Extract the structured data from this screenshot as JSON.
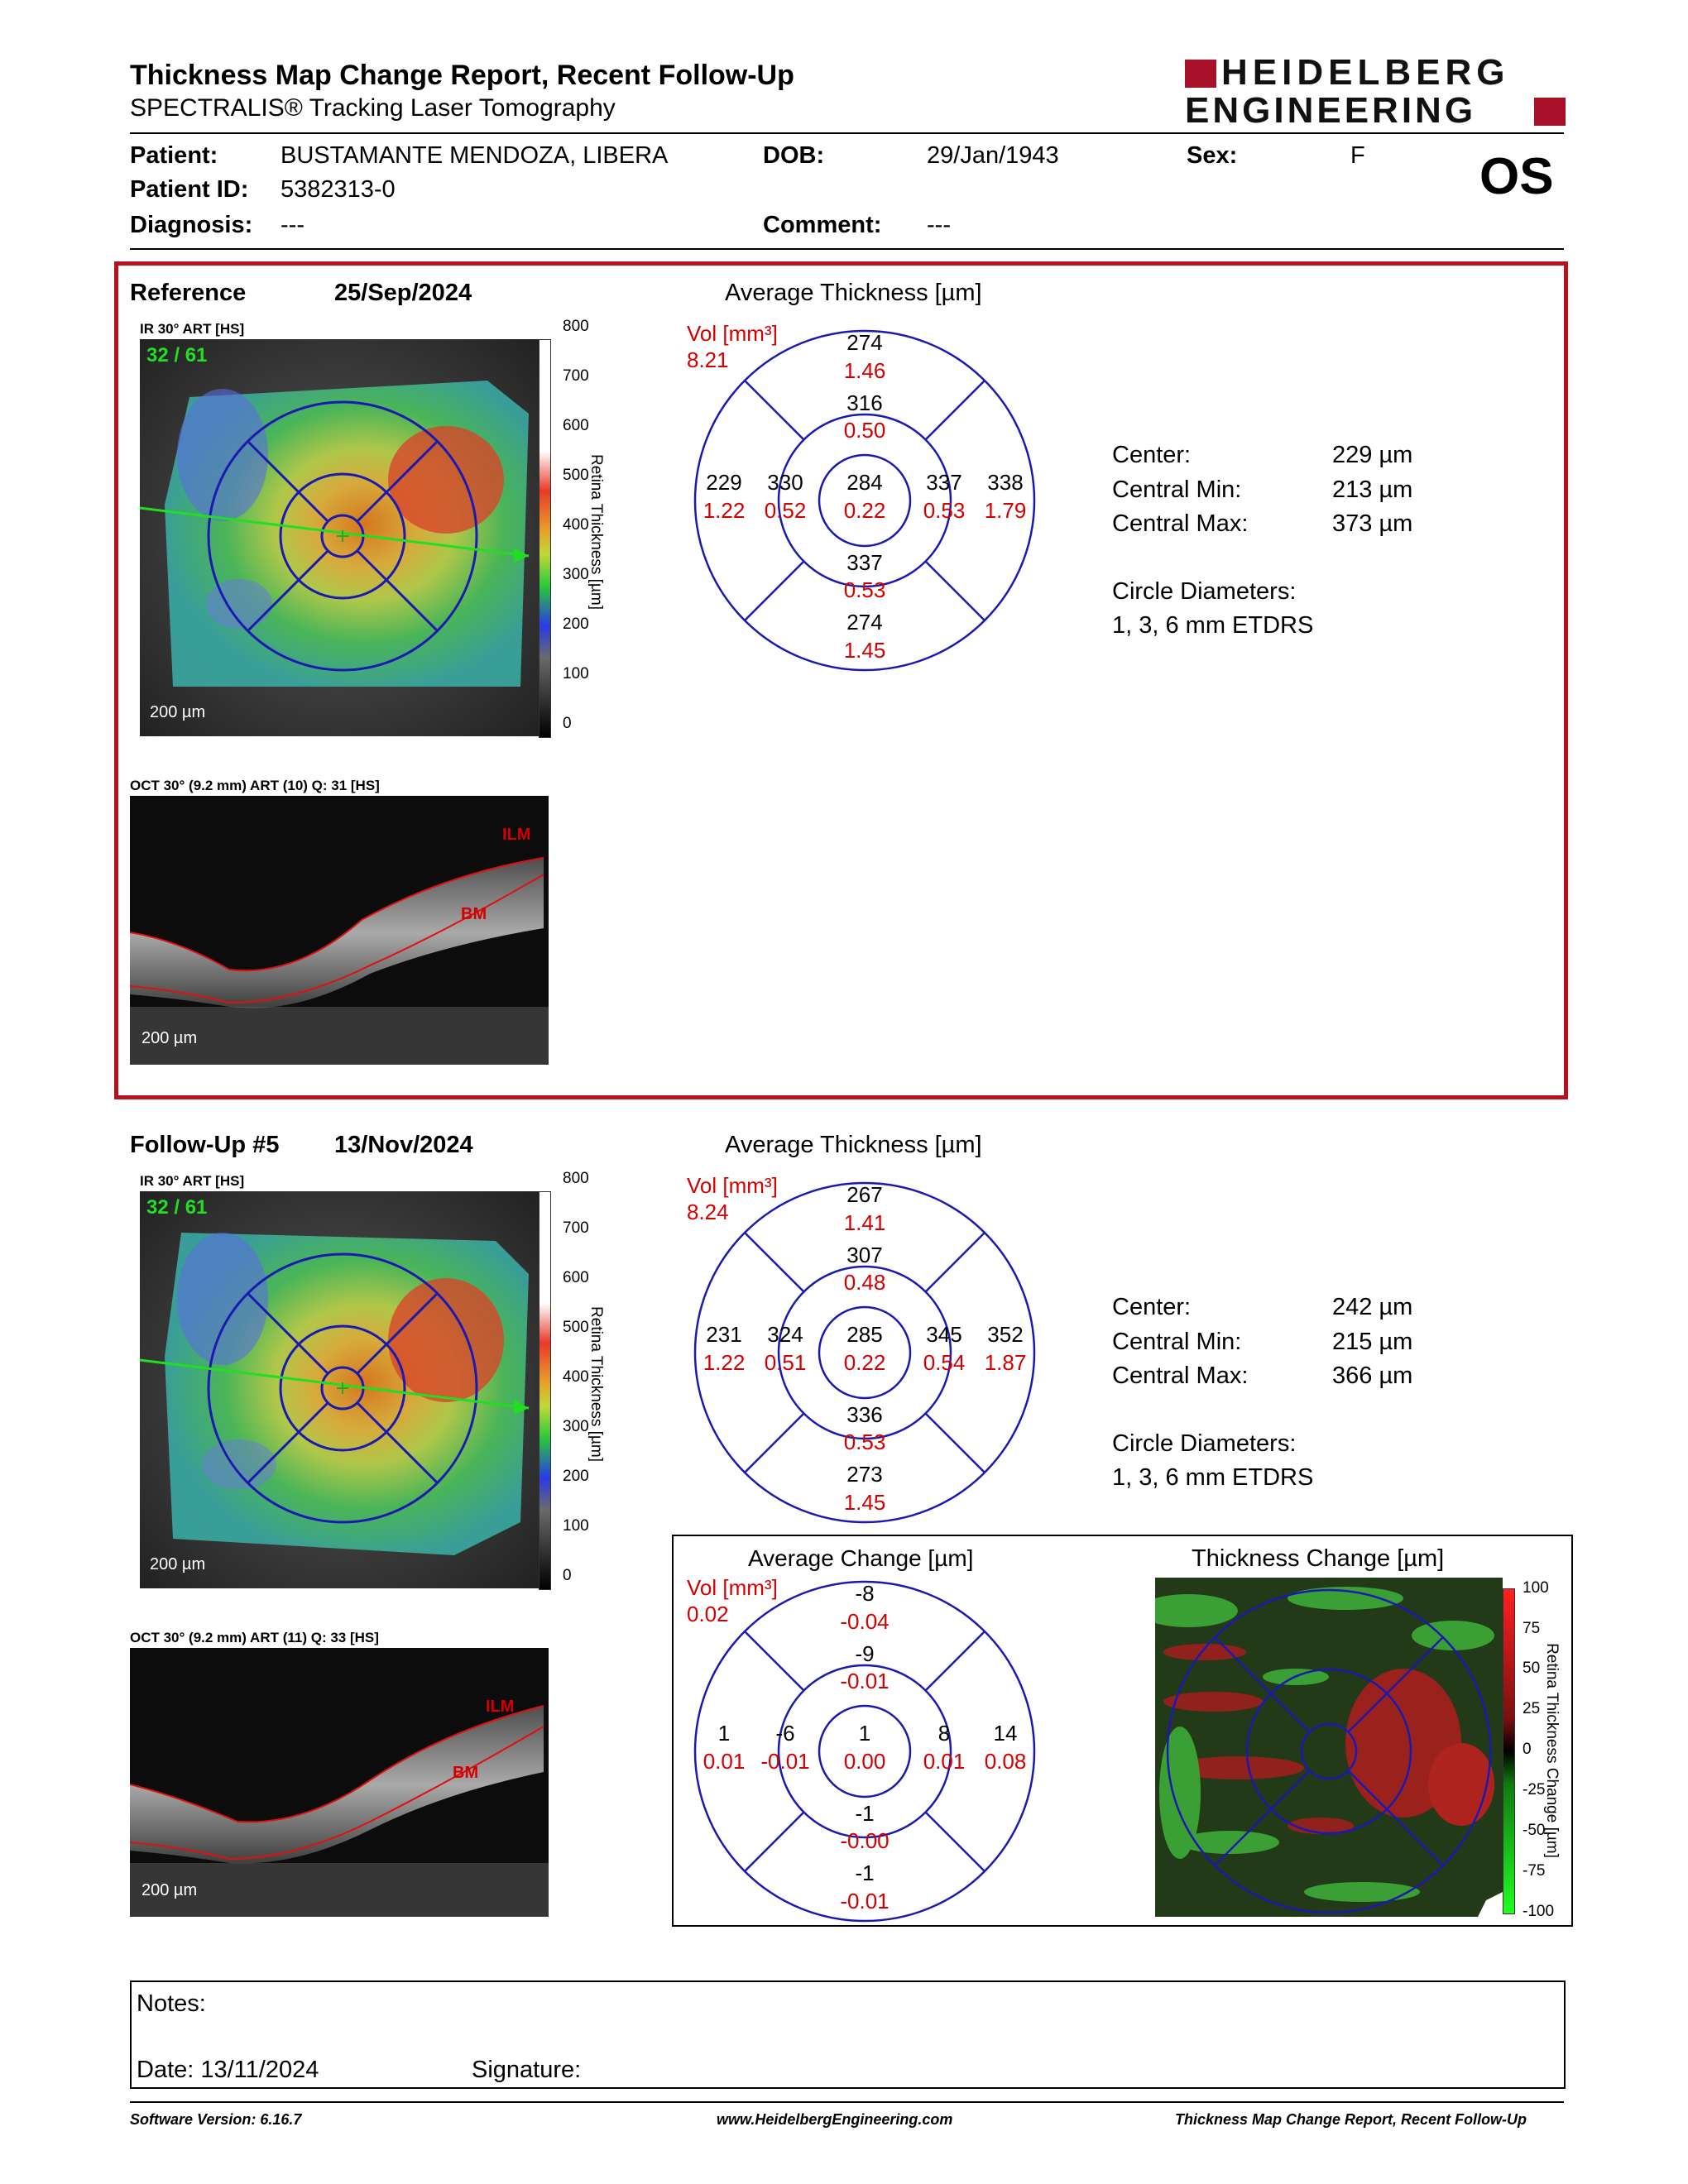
{
  "header": {
    "title": "Thickness Map Change Report, Recent Follow-Up",
    "subtitle": "SPECTRALIS® Tracking Laser Tomography",
    "logo_line1": "HEIDELBERG",
    "logo_line2": "ENGINEERING"
  },
  "patient": {
    "patient_label": "Patient:",
    "patient_value": "BUSTAMANTE MENDOZA, LIBERA",
    "dob_label": "DOB:",
    "dob_value": "29/Jan/1943",
    "sex_label": "Sex:",
    "sex_value": "F",
    "id_label": "Patient ID:",
    "id_value": "5382313-0",
    "diagnosis_label": "Diagnosis:",
    "diagnosis_value": "---",
    "comment_label": "Comment:",
    "comment_value": "---",
    "eye": "OS"
  },
  "reference": {
    "label": "Reference",
    "date": "25/Sep/2024",
    "ir_caption": "IR 30° ART [HS]",
    "frame_count": "32 / 61",
    "ir_scale": "200 µm",
    "oct_caption": "OCT 30° (9.2 mm) ART (10) Q: 31 [HS]",
    "oct_scale": "200 µm",
    "ilm": "ILM",
    "bm": "BM",
    "avg_title": "Average Thickness [µm]",
    "vol_label": "Vol [mm³]",
    "vol_value": "8.21",
    "grid": {
      "outer_top": "274",
      "outer_top_vol": "1.46",
      "inner_top": "316",
      "inner_top_vol": "0.50",
      "outer_left": "229",
      "outer_left_vol": "1.22",
      "inner_left": "330",
      "inner_left_vol": "0.52",
      "center": "284",
      "center_vol": "0.22",
      "inner_right": "337",
      "inner_right_vol": "0.53",
      "outer_right": "338",
      "outer_right_vol": "1.79",
      "inner_bottom": "337",
      "inner_bottom_vol": "0.53",
      "outer_bottom": "274",
      "outer_bottom_vol": "1.45"
    },
    "stats": {
      "center_label": "Center:",
      "center_value": "229 µm",
      "min_label": "Central Min:",
      "min_value": "213 µm",
      "max_label": "Central Max:",
      "max_value": "373 µm",
      "diam_label": "Circle Diameters:",
      "diam_value": "1, 3, 6 mm ETDRS"
    }
  },
  "followup": {
    "label": "Follow-Up #5",
    "date": "13/Nov/2024",
    "ir_caption": "IR 30° ART [HS]",
    "frame_count": "32 / 61",
    "ir_scale": "200 µm",
    "oct_caption": "OCT 30° (9.2 mm) ART (11) Q: 33 [HS]",
    "oct_scale": "200 µm",
    "ilm": "ILM",
    "bm": "BM",
    "avg_title": "Average Thickness [µm]",
    "vol_label": "Vol [mm³]",
    "vol_value": "8.24",
    "grid": {
      "outer_top": "267",
      "outer_top_vol": "1.41",
      "inner_top": "307",
      "inner_top_vol": "0.48",
      "outer_left": "231",
      "outer_left_vol": "1.22",
      "inner_left": "324",
      "inner_left_vol": "0.51",
      "center": "285",
      "center_vol": "0.22",
      "inner_right": "345",
      "inner_right_vol": "0.54",
      "outer_right": "352",
      "outer_right_vol": "1.87",
      "inner_bottom": "336",
      "inner_bottom_vol": "0.53",
      "outer_bottom": "273",
      "outer_bottom_vol": "1.45"
    },
    "stats": {
      "center_label": "Center:",
      "center_value": "242 µm",
      "min_label": "Central Min:",
      "min_value": "215 µm",
      "max_label": "Central Max:",
      "max_value": "366 µm",
      "diam_label": "Circle Diameters:",
      "diam_value": "1, 3, 6 mm ETDRS"
    }
  },
  "thickness_scale": {
    "label": "Retina Thickness [µm]",
    "ticks": [
      "800",
      "700",
      "600",
      "500",
      "400",
      "300",
      "200",
      "100",
      "0"
    ]
  },
  "change": {
    "avg_title": "Average Change [µm]",
    "vol_label": "Vol [mm³]",
    "vol_value": "0.02",
    "grid": {
      "outer_top": "-8",
      "outer_top_vol": "-0.04",
      "inner_top": "-9",
      "inner_top_vol": "-0.01",
      "outer_left": "1",
      "outer_left_vol": "0.01",
      "inner_left": "-6",
      "inner_left_vol": "-0.01",
      "center": "1",
      "center_vol": "0.00",
      "inner_right": "8",
      "inner_right_vol": "0.01",
      "outer_right": "14",
      "outer_right_vol": "0.08",
      "inner_bottom": "-1",
      "inner_bottom_vol": "-0.00",
      "outer_bottom": "-1",
      "outer_bottom_vol": "-0.01"
    },
    "map_title": "Thickness Change [µm]",
    "scale_label": "Retina Thickness Change [µm]",
    "scale_ticks": [
      "100",
      "75",
      "50",
      "25",
      "0",
      "-25",
      "-50",
      "-75",
      "-100"
    ]
  },
  "notes": {
    "notes_label": "Notes:",
    "date_label": "Date: 13/11/2024",
    "signature_label": "Signature:"
  },
  "footer": {
    "software": "Software Version: 6.16.7",
    "website": "www.HeidelbergEngineering.com",
    "report_name": "Thickness Map Change Report, Recent Follow-Up"
  }
}
